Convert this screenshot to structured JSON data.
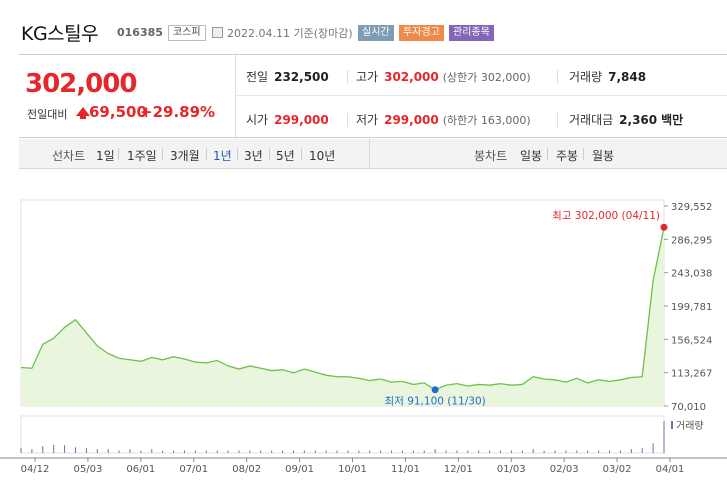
{
  "header": {
    "stock_name": "KG스틸우",
    "stock_code": "016385",
    "market": "코스피",
    "date": "2022.04.11 기준(장마감)",
    "tags": {
      "realtime": "실시간",
      "warning": "투자경고",
      "managed": "관리종목"
    }
  },
  "quote": {
    "price": "302,000",
    "change_label": "전일대비",
    "change_amount": "69,500",
    "change_percent": "+29.89%",
    "prev_close_label": "전일",
    "prev_close": "232,500",
    "high_label": "고가",
    "high": "302,000",
    "high_sub": "(상한가 302,000)",
    "volume_label": "거래량",
    "volume": "7,848",
    "open_label": "시가",
    "open": "299,000",
    "low_label": "저가",
    "low": "299,000",
    "low_sub": "(하한가 163,000)",
    "amount_label": "거래대금",
    "amount": "2,360",
    "amount_unit": "백만"
  },
  "tabs": {
    "line_label": "선차트",
    "periods": [
      "1일",
      "1주일",
      "3개월",
      "1년",
      "3년",
      "5년",
      "10년"
    ],
    "active_period": "1년",
    "candle_label": "봉차트",
    "candles": [
      "일봉",
      "주봉",
      "월봉"
    ]
  },
  "colors": {
    "up": "#e5272b",
    "line": "#6cc24a",
    "area": "#e9f6dd",
    "low_marker": "#1f6fd1",
    "active_tab": "#1f59b3"
  },
  "chart_data": {
    "type": "area",
    "y_ticks": [
      "329,552",
      "286,295",
      "243,038",
      "199,781",
      "156,524",
      "113,267",
      "70,010"
    ],
    "ylim": [
      70010,
      329552
    ],
    "x_ticks": [
      "04/12",
      "05/03",
      "06/01",
      "07/01",
      "08/02",
      "09/01",
      "10/01",
      "11/01",
      "12/01",
      "01/03",
      "02/03",
      "03/02",
      "04/01"
    ],
    "high_annotation": "최고 302,000 (04/11)",
    "low_annotation": "최저 91,100 (11/30)",
    "volume_legend": "거래량",
    "series": [
      {
        "x": [
          "04/12",
          "04/19",
          "04/26",
          "04/29",
          "05/03",
          "05/06",
          "05/10",
          "05/13",
          "05/17",
          "05/20",
          "05/24",
          "05/27",
          "06/01",
          "06/08",
          "06/15",
          "06/22",
          "06/29",
          "07/06",
          "07/13",
          "07/20",
          "07/27",
          "08/03",
          "08/10",
          "08/17",
          "08/24",
          "08/31",
          "09/07",
          "09/14",
          "09/21",
          "09/28",
          "10/05",
          "10/12",
          "10/19",
          "10/26",
          "11/02",
          "11/09",
          "11/16",
          "11/23",
          "11/30",
          "12/07",
          "12/14",
          "12/21",
          "12/28",
          "01/04",
          "01/11",
          "01/18",
          "01/25",
          "02/01",
          "02/08",
          "02/15",
          "02/22",
          "03/01",
          "03/08",
          "03/15",
          "03/22",
          "03/29",
          "04/01",
          "04/05",
          "04/08",
          "04/11"
        ],
        "y": [
          120000,
          119000,
          150000,
          158000,
          172000,
          182000,
          165000,
          148000,
          138000,
          132000,
          130000,
          128000,
          133000,
          130000,
          134000,
          131000,
          127000,
          126000,
          129000,
          122000,
          118000,
          122000,
          119000,
          116000,
          117000,
          113000,
          118000,
          114000,
          110000,
          108000,
          108000,
          106000,
          103000,
          105000,
          101000,
          102000,
          98000,
          100000,
          91100,
          97000,
          99000,
          96000,
          98000,
          97000,
          99000,
          97000,
          98000,
          108000,
          105000,
          104000,
          101000,
          106000,
          100000,
          104000,
          102000,
          104000,
          107000,
          108000,
          232500,
          302000
        ]
      }
    ],
    "volume_values": [
      3,
      2,
      6,
      9,
      8,
      4,
      3,
      2,
      2,
      1,
      2,
      1,
      2,
      1,
      1,
      1,
      1,
      1,
      1,
      1,
      1,
      1,
      1,
      1,
      1,
      1,
      1,
      1,
      1,
      1,
      1,
      1,
      1,
      1,
      1,
      1,
      1,
      1,
      2,
      1,
      1,
      1,
      1,
      1,
      1,
      1,
      1,
      2,
      1,
      1,
      1,
      1,
      1,
      1,
      1,
      1,
      2,
      3,
      14,
      7848
    ]
  }
}
